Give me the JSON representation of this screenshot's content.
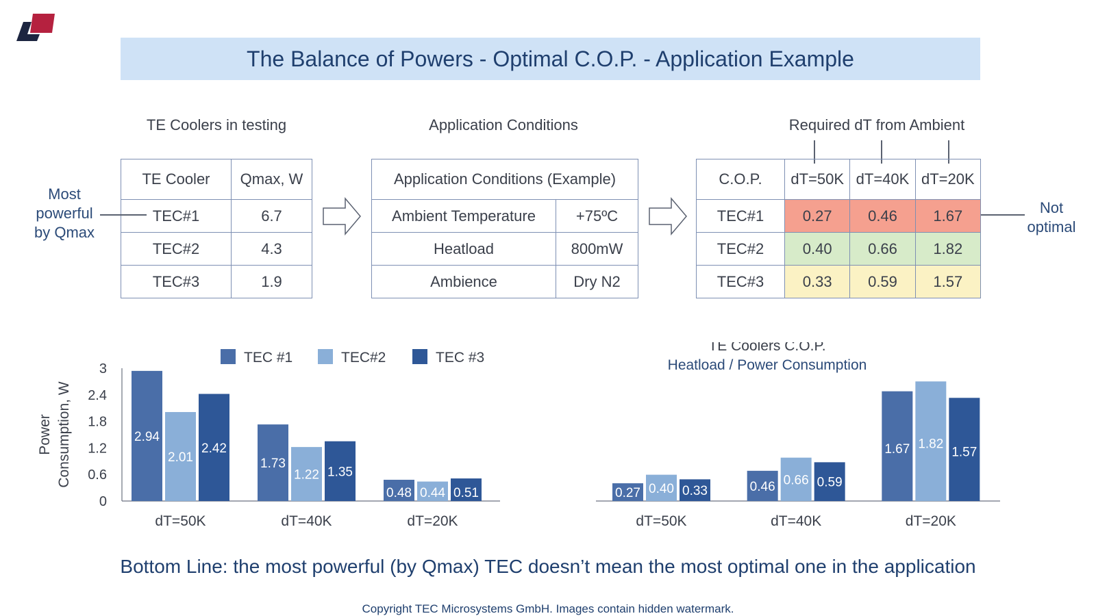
{
  "title": "The Balance of Powers - Optimal C.O.P. - Application Example",
  "coolers_section": {
    "label": "TE Coolers in testing",
    "headers": [
      "TE Cooler",
      "Qmax, W"
    ],
    "rows": [
      [
        "TEC#1",
        "6.7"
      ],
      [
        "TEC#2",
        "4.3"
      ],
      [
        "TEC#3",
        "1.9"
      ]
    ],
    "note": [
      "Most",
      "powerful",
      "by Qmax"
    ]
  },
  "conditions_section": {
    "label": "Application Conditions",
    "header": "Application Conditions (Example)",
    "rows": [
      [
        "Ambient Temperature",
        "+75ºC"
      ],
      [
        "Heatload",
        "800mW"
      ],
      [
        "Ambience",
        "Dry N2"
      ]
    ]
  },
  "cop_section": {
    "label": "Required dT from Ambient",
    "headers": [
      "C.O.P.",
      "dT=50K",
      "dT=40K",
      "dT=20K"
    ],
    "rows": [
      [
        "TEC#1",
        "0.27",
        "0.46",
        "1.67"
      ],
      [
        "TEC#2",
        "0.40",
        "0.66",
        "1.82"
      ],
      [
        "TEC#3",
        "0.33",
        "0.59",
        "1.57"
      ]
    ],
    "note": [
      "Not",
      "optimal"
    ]
  },
  "colors": {
    "tec1": "#4a6ea8",
    "tec2": "#8aafd8",
    "tec3": "#2e5797",
    "row_red": "#f5a08f",
    "row_green": "#d7ebc9",
    "row_yellow": "#fbf2c4"
  },
  "chart_data": [
    {
      "type": "bar",
      "title": "",
      "ylabel": "Power Consumption, W",
      "xlabel": "",
      "categories": [
        "dT=50K",
        "dT=40K",
        "dT=20K"
      ],
      "ylim": [
        0,
        3
      ],
      "yticks": [
        "0",
        "0.6",
        "1.2",
        "1.8",
        "2.4",
        "3"
      ],
      "legend": "top",
      "series": [
        {
          "name": "TEC #1",
          "values": [
            2.94,
            1.73,
            0.48
          ],
          "labels": [
            "2.94",
            "1.73",
            "0.48"
          ]
        },
        {
          "name": "TEC#2",
          "values": [
            2.01,
            1.22,
            0.44
          ],
          "labels": [
            "2.01",
            "1.22",
            "0.44"
          ]
        },
        {
          "name": "TEC #3",
          "values": [
            2.42,
            1.35,
            0.51
          ],
          "labels": [
            "2.42",
            "1.35",
            "0.51"
          ]
        }
      ]
    },
    {
      "type": "bar",
      "title": [
        "TE Coolers C.O.P.",
        "Heatload / Power Consumption"
      ],
      "xlabel": "",
      "ylabel": "",
      "categories": [
        "dT=50K",
        "dT=40K",
        "dT=20K"
      ],
      "ylim": [
        0,
        2.0
      ],
      "series": [
        {
          "name": "TEC #1",
          "values": [
            0.27,
            0.46,
            1.67
          ],
          "labels": [
            "0.27",
            "0.46",
            "1.67"
          ]
        },
        {
          "name": "TEC#2",
          "values": [
            0.4,
            0.66,
            1.82
          ],
          "labels": [
            "0.40",
            "0.66",
            "1.82"
          ]
        },
        {
          "name": "TEC #3",
          "values": [
            0.33,
            0.59,
            1.57
          ],
          "labels": [
            "0.33",
            "0.59",
            "1.57"
          ]
        }
      ]
    }
  ],
  "bottom_line": "Bottom Line: the most powerful (by Qmax) TEC doesn’t mean the most optimal one in the application",
  "copyright": "Copyright TEC Microsystems GmbH. Images contain hidden watermark."
}
